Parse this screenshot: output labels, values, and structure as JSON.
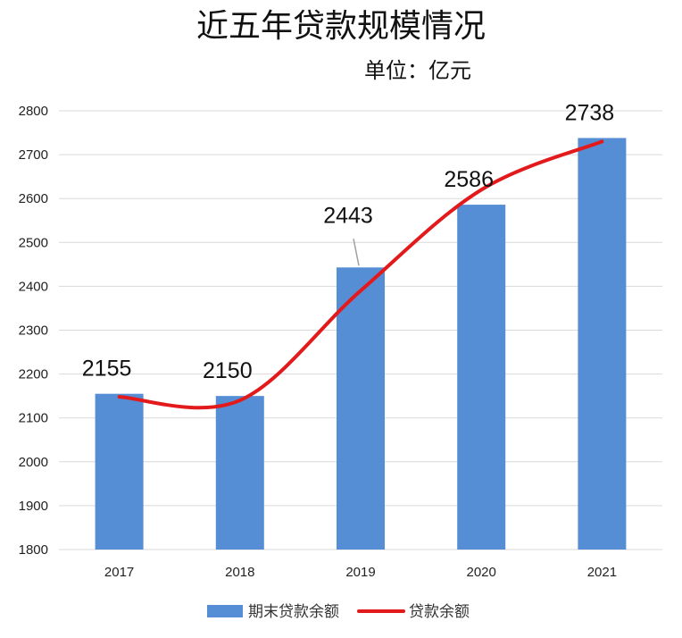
{
  "chart_data": {
    "type": "bar",
    "title": "近五年贷款规模情况",
    "subtitle": "单位：亿元",
    "categories": [
      "2017",
      "2018",
      "2019",
      "2020",
      "2021"
    ],
    "series": [
      {
        "name": "期末贷款余额",
        "kind": "bar",
        "color": "#558ED5",
        "values": [
          2155,
          2150,
          2443,
          2586,
          2738
        ]
      },
      {
        "name": "贷款余额",
        "kind": "line",
        "smooth": true,
        "color": "#E31A1C",
        "values": [
          2148,
          2140,
          2390,
          2620,
          2730
        ]
      }
    ],
    "data_labels": [
      "2155",
      "2150",
      "2443",
      "2586",
      "2738"
    ],
    "ylim": [
      1800,
      2800
    ],
    "yticks": [
      1800,
      1900,
      2000,
      2100,
      2200,
      2300,
      2400,
      2500,
      2600,
      2700,
      2800
    ],
    "grid": true,
    "legend_position": "bottom"
  }
}
